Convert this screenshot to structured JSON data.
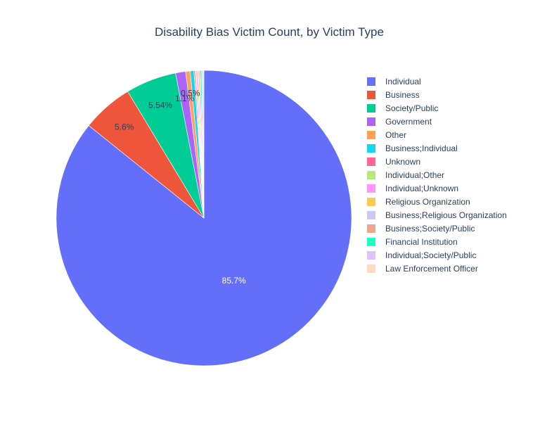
{
  "chart_data": {
    "type": "pie",
    "title": "Disability Bias Victim Count, by Victim Type",
    "legend_position": "right",
    "slices": [
      {
        "label": "Individual",
        "percent": 85.7,
        "color": "#636efa",
        "text": "85.7%"
      },
      {
        "label": "Business",
        "percent": 5.6,
        "color": "#ef553b",
        "text": "5.6%"
      },
      {
        "label": "Society/Public",
        "percent": 5.54,
        "color": "#00cc96",
        "text": "5.54%"
      },
      {
        "label": "Government",
        "percent": 1.1,
        "color": "#ab63fa",
        "text": "1.1%"
      },
      {
        "label": "Other",
        "percent": 0.5,
        "color": "#ffa15a",
        "text": "0.5%"
      },
      {
        "label": "Business;Individual",
        "percent": 0.4,
        "color": "#19d3f3",
        "text": ""
      },
      {
        "label": "Unknown",
        "percent": 0.12,
        "color": "#ff6692",
        "text": ""
      },
      {
        "label": "Individual;Other",
        "percent": 0.12,
        "color": "#b6e880",
        "text": ""
      },
      {
        "label": "Individual;Unknown",
        "percent": 0.12,
        "color": "#ff97ff",
        "text": ""
      },
      {
        "label": "Religious Organization",
        "percent": 0.12,
        "color": "#fecb52",
        "text": ""
      },
      {
        "label": "Business;Religious Organization",
        "percent": 0.12,
        "color": "#c6cbf5",
        "text": ""
      },
      {
        "label": "Business;Society/Public",
        "percent": 0.12,
        "color": "#f0a493",
        "text": ""
      },
      {
        "label": "Financial Institution",
        "percent": 0.12,
        "color": "#1effc0",
        "text": ""
      },
      {
        "label": "Individual;Society/Public",
        "percent": 0.12,
        "color": "#dcc4fb",
        "text": ""
      },
      {
        "label": "Law Enforcement Officer",
        "percent": 0.12,
        "color": "#fcd9c0",
        "text": ""
      }
    ]
  }
}
